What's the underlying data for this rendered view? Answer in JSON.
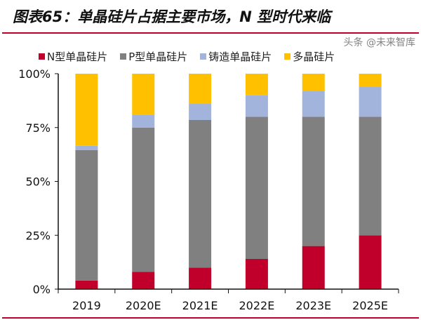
{
  "title": "图表65：单晶硅片占据主要市场，N 型时代来临",
  "watermark": "头条 @未来智库",
  "chart_data": {
    "type": "bar",
    "stacked": true,
    "categories": [
      "2019",
      "2020E",
      "2021E",
      "2022E",
      "2023E",
      "2025E"
    ],
    "series": [
      {
        "name": "N型单晶硅片",
        "color": "#c0002b",
        "values": [
          4,
          8,
          10,
          14,
          20,
          25
        ]
      },
      {
        "name": "P型单晶硅片",
        "color": "#808080",
        "values": [
          60.5,
          67,
          68.5,
          66,
          60,
          55
        ]
      },
      {
        "name": "铸造单晶硅片",
        "color": "#a2b4dc",
        "values": [
          2,
          6,
          7.5,
          10,
          12,
          14
        ]
      },
      {
        "name": "多晶硅片",
        "color": "#ffc000",
        "values": [
          33.5,
          19,
          14,
          10,
          8,
          6
        ]
      }
    ],
    "yticks": [
      "0%",
      "25%",
      "50%",
      "75%",
      "100%"
    ],
    "ylim": [
      0,
      100
    ],
    "legend": "top",
    "grid": false
  }
}
